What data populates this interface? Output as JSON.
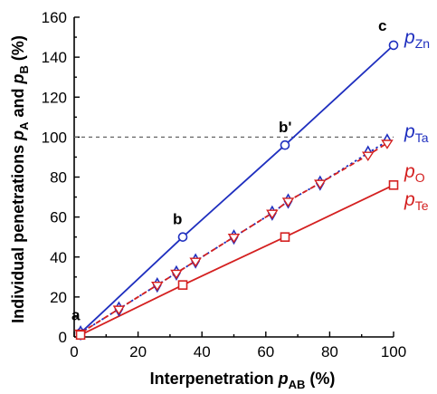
{
  "chart_data": {
    "type": "line",
    "xlabel": {
      "prefix": "Interpenetration ",
      "var": "p",
      "sub": "AB",
      "suffix": " (%)"
    },
    "ylabel": {
      "prefix": "Individual penetrations ",
      "var1": "p",
      "sub1": "A",
      "mid": " and ",
      "var2": "p",
      "sub2": "B",
      "suffix": " (%)"
    },
    "xlim": [
      0,
      100
    ],
    "ylim": [
      0,
      160
    ],
    "xticks": [
      0,
      20,
      40,
      60,
      80,
      100
    ],
    "yticks": [
      0,
      20,
      40,
      60,
      80,
      100,
      120,
      140,
      160
    ],
    "reference_line": {
      "y": 100,
      "style": "dashed",
      "color": "#666666"
    },
    "series": [
      {
        "name": "Zn",
        "label_var": "p",
        "label_sub": "Zn",
        "color": "#1f2fbf",
        "marker": "circle",
        "line": "solid",
        "x": [
          2,
          34,
          66,
          100
        ],
        "y": [
          2,
          50,
          96,
          146
        ]
      },
      {
        "name": "Ta",
        "label_var": "p",
        "label_sub": "Ta",
        "color": "#1f2fbf",
        "marker": "diamond",
        "line": "dotted",
        "x": [
          2,
          14,
          26,
          32,
          38,
          50,
          62,
          67,
          77,
          92,
          98
        ],
        "y": [
          2,
          14,
          26,
          32,
          38,
          50,
          62,
          68,
          77,
          92,
          98
        ]
      },
      {
        "name": "O",
        "label_var": "p",
        "label_sub": "O",
        "color": "#d42020",
        "marker": "triangle",
        "line": "dashed",
        "x": [
          2,
          14,
          26,
          32,
          38,
          50,
          62,
          67,
          77,
          92,
          98
        ],
        "y": [
          2,
          14,
          26,
          32,
          38,
          50,
          62,
          68,
          77,
          91,
          97
        ]
      },
      {
        "name": "Te",
        "label_var": "p",
        "label_sub": "Te",
        "color": "#d42020",
        "marker": "square",
        "line": "solid",
        "x": [
          2,
          34,
          66,
          100
        ],
        "y": [
          1,
          26,
          50,
          76
        ]
      }
    ],
    "annotations": [
      {
        "text": "a",
        "x": 2,
        "y": 2
      },
      {
        "text": "b",
        "x": 34,
        "y": 50
      },
      {
        "text": "b'",
        "x": 66,
        "y": 96
      },
      {
        "text": "c",
        "x": 100,
        "y": 146
      }
    ]
  }
}
